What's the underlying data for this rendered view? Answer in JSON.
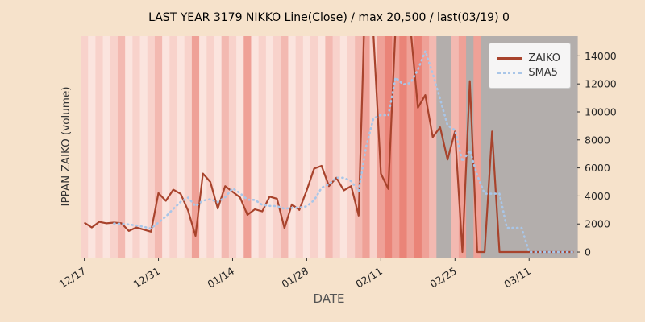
{
  "colors": {
    "figure_bg": "#f6e2cb",
    "zaiko_line": "#a8432c",
    "sma5_line": "#a9c6e8",
    "band_gray": "#b3aeac",
    "tick_text": "#262626"
  },
  "chart_data": {
    "type": "line",
    "title": "LAST YEAR 3179 NIKKO Line(Close) / max 20,500 / last(03/19) 0",
    "xlabel": "DATE",
    "ylabel": "IPPAN ZAIKO (volume)",
    "ylim": [
      -400,
      15400
    ],
    "yticks": [
      0,
      2000,
      4000,
      6000,
      8000,
      10000,
      12000,
      14000
    ],
    "ytick_side": "right",
    "grid": false,
    "legend_position": "upper right",
    "max_annotated": 20500,
    "last_annotated": {
      "date": "03/19",
      "value": 0
    },
    "categories": [
      "12/17",
      "12/18",
      "12/19",
      "12/20",
      "12/21",
      "12/24",
      "12/25",
      "12/26",
      "12/27",
      "12/28",
      "12/31",
      "01/01",
      "01/02",
      "01/03",
      "01/04",
      "01/07",
      "01/08",
      "01/09",
      "01/10",
      "01/11",
      "01/14",
      "01/15",
      "01/16",
      "01/17",
      "01/18",
      "01/21",
      "01/22",
      "01/23",
      "01/24",
      "01/25",
      "01/28",
      "01/29",
      "01/30",
      "01/31",
      "02/01",
      "02/04",
      "02/05",
      "02/06",
      "02/07",
      "02/08",
      "02/11",
      "02/12",
      "02/13",
      "02/14",
      "02/15",
      "02/18",
      "02/19",
      "02/20",
      "02/21",
      "02/22",
      "02/25",
      "02/26",
      "02/27",
      "02/28",
      "03/01",
      "03/04",
      "03/05",
      "03/06",
      "03/07",
      "03/08",
      "03/11",
      "03/12",
      "03/13",
      "03/14",
      "03/15",
      "03/18",
      "03/19"
    ],
    "xticks": [
      {
        "i": 0,
        "label": "12/17"
      },
      {
        "i": 10,
        "label": "12/31"
      },
      {
        "i": 20,
        "label": "01/14"
      },
      {
        "i": 30,
        "label": "01/28"
      },
      {
        "i": 40,
        "label": "02/11"
      },
      {
        "i": 50,
        "label": "02/25"
      },
      {
        "i": 60,
        "label": "03/11"
      }
    ],
    "series": [
      {
        "name": "ZAIKO",
        "color": "#a8432c",
        "style": "solid",
        "values": [
          2100,
          1750,
          2150,
          2050,
          2100,
          2050,
          1500,
          1750,
          1600,
          1450,
          4200,
          3650,
          4450,
          4150,
          2950,
          1150,
          5600,
          5000,
          3100,
          4700,
          4300,
          3900,
          2650,
          3050,
          2900,
          3950,
          3800,
          1700,
          3400,
          3000,
          4400,
          5950,
          6150,
          4700,
          5300,
          4400,
          4700,
          2600,
          20500,
          15500,
          5600,
          4500,
          16200,
          18000,
          16000,
          10300,
          11200,
          8200,
          8900,
          6600,
          8600,
          0,
          12200,
          0,
          0,
          8600,
          0,
          0,
          0,
          0,
          0,
          0,
          0,
          0,
          0,
          0,
          0
        ]
      },
      {
        "name": "SMA5",
        "color": "#a9c6e8",
        "style": "dotted",
        "derived": "5-point moving average of ZAIKO",
        "values": [
          null,
          null,
          null,
          null,
          2030,
          2020,
          1970,
          1890,
          1800,
          1670,
          2100,
          2530,
          3070,
          3580,
          3880,
          3270,
          3660,
          3770,
          3560,
          3910,
          4540,
          4200,
          3730,
          3720,
          3360,
          3290,
          3270,
          3080,
          3150,
          3170,
          3260,
          3690,
          4580,
          4840,
          5300,
          5300,
          5050,
          4340,
          7500,
          9540,
          9780,
          9740,
          12460,
          11960,
          12060,
          13000,
          14340,
          12740,
          10920,
          9040,
          8700,
          6460,
          7260,
          5480,
          4160,
          4160,
          4160,
          1720,
          1720,
          1720,
          0,
          0,
          0,
          0,
          0,
          0,
          0
        ]
      }
    ],
    "bands": [
      "#f8d2cb",
      "#fbe4de",
      "#f8d2cb",
      "#fbe4de",
      "#f8d2cb",
      "#f3b9b1",
      "#fbe4de",
      "#f8d2cb",
      "#fbe4de",
      "#f8d2cb",
      "#f3b9b1",
      "#fbe4de",
      "#f8d2cb",
      "#fbe4de",
      "#f8d2cb",
      "#efa197",
      "#fbe4de",
      "#f8d2cb",
      "#fbe4de",
      "#f3b9b1",
      "#f8d2cb",
      "#fbe4de",
      "#efa197",
      "#fbe4de",
      "#f8d2cb",
      "#fbe4de",
      "#f8d2cb",
      "#f3b9b1",
      "#fbe4de",
      "#f8d2cb",
      "#fbe4de",
      "#f8d2cb",
      "#fbe4de",
      "#f3b9b1",
      "#f8d2cb",
      "#fbe4de",
      "#f8d2cb",
      "#f3b9b1",
      "#efa197",
      "#f8d2cb",
      "#efa197",
      "#ea8478",
      "#efa197",
      "#ea8478",
      "#efa197",
      "#ea8478",
      "#efa197",
      "#f3b9b1",
      "#b3aeac",
      "#b3aeac",
      "#f3b9b1",
      "#efa197",
      "#b3aeac",
      "#efa197",
      "#b3aeac",
      "#b3aeac",
      "#b3aeac",
      "#b3aeac",
      "#b3aeac",
      "#b3aeac",
      "#b3aeac",
      "#b3aeac",
      "#b3aeac",
      "#b3aeac",
      "#b3aeac",
      "#b3aeac",
      "#b3aeac"
    ]
  }
}
